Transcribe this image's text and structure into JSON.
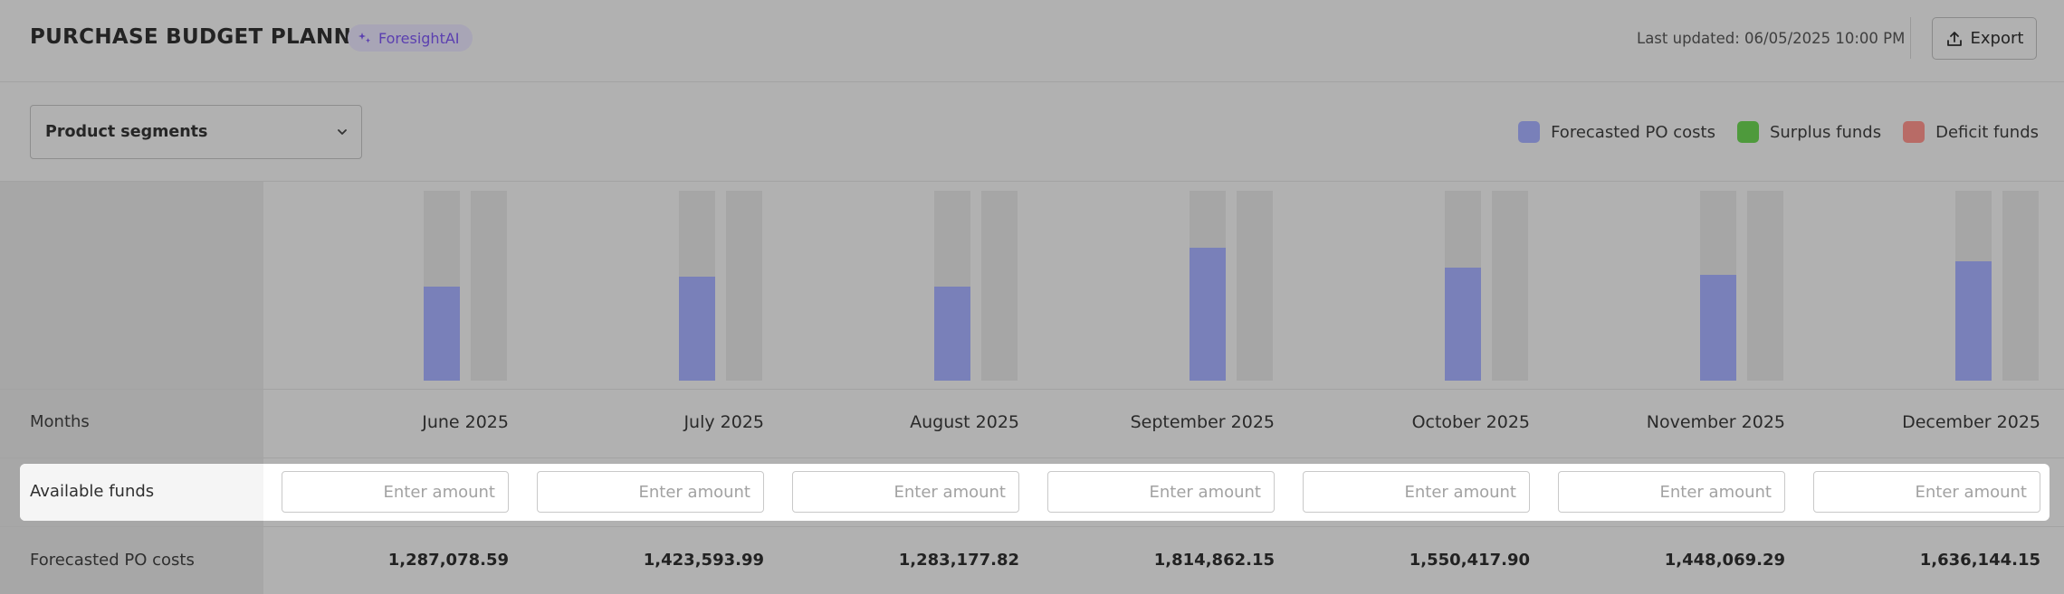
{
  "header": {
    "title": "PURCHASE BUDGET PLANNER",
    "ai_badge": "ForesightAI",
    "last_updated": "Last updated: 06/05/2025 10:00 PM",
    "export_label": "Export"
  },
  "toolbar": {
    "segment_select": "Product segments",
    "legend": [
      {
        "label": "Forecasted PO costs",
        "color": "#7980b9"
      },
      {
        "label": "Surplus funds",
        "color": "#4e9a3c"
      },
      {
        "label": "Deficit funds",
        "color": "#b86b66"
      }
    ]
  },
  "table": {
    "months_label": "Months",
    "available_funds_label": "Available funds",
    "forecasted_label": "Forecasted PO costs",
    "input_placeholder": "Enter amount",
    "months": [
      {
        "month": "June 2025",
        "available_funds": "",
        "forecasted_po_costs": "1,287,078.59"
      },
      {
        "month": "July 2025",
        "available_funds": "",
        "forecasted_po_costs": "1,423,593.99"
      },
      {
        "month": "August 2025",
        "available_funds": "",
        "forecasted_po_costs": "1,283,177.82"
      },
      {
        "month": "September 2025",
        "available_funds": "",
        "forecasted_po_costs": "1,814,862.15"
      },
      {
        "month": "October 2025",
        "available_funds": "",
        "forecasted_po_costs": "1,550,417.90"
      },
      {
        "month": "November 2025",
        "available_funds": "",
        "forecasted_po_costs": "1,448,069.29"
      },
      {
        "month": "December 2025",
        "available_funds": "",
        "forecasted_po_costs": "1,636,144.15"
      }
    ]
  },
  "chart_data": {
    "type": "bar",
    "categories": [
      "June 2025",
      "July 2025",
      "August 2025",
      "September 2025",
      "October 2025",
      "November 2025",
      "December 2025"
    ],
    "series": [
      {
        "name": "Forecasted PO costs",
        "values": [
          1287078.59,
          1423593.99,
          1283177.82,
          1814862.15,
          1550417.9,
          1448069.29,
          1636144.15
        ]
      }
    ],
    "ylim": [
      0,
      2600000
    ],
    "grid": false,
    "legend_position": "top-right"
  }
}
